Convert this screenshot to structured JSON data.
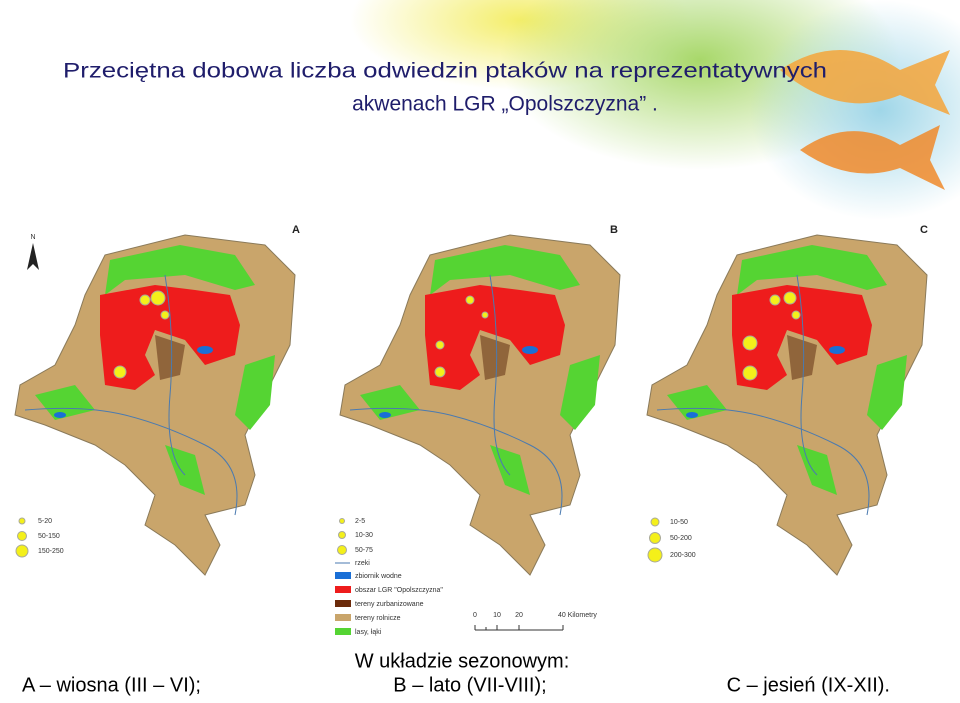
{
  "header": {
    "title_line1": "Przeciętna dobowa liczba odwiedzin ptaków na reprezentatywnych",
    "title_line2": "akwenach LGR „Opolszczyzna” ."
  },
  "maps": [
    {
      "letter": "A",
      "north": "N",
      "legend": [
        "5-20",
        "50-150",
        "150-250"
      ]
    },
    {
      "letter": "B",
      "legend": [
        "2-5",
        "10-30",
        "50-75"
      ]
    },
    {
      "letter": "C",
      "legend": [
        "10-50",
        "50-200",
        "200-300"
      ]
    }
  ],
  "map_legend": [
    "rzeki",
    "zbiornik wodne",
    "obszar LGR \"Opolszczyzna\"",
    "tereny zurbanizowane",
    "tereny rolnicze",
    "lasy, łąki"
  ],
  "scale": [
    "0",
    "10",
    "20",
    "40 Kilometry"
  ],
  "footer": {
    "heading": "W układzie sezonowym:",
    "items": [
      "A – wiosna (III – VI);",
      "B – lato (VII-VIII);",
      "C – jesień (IX-XII)."
    ]
  }
}
